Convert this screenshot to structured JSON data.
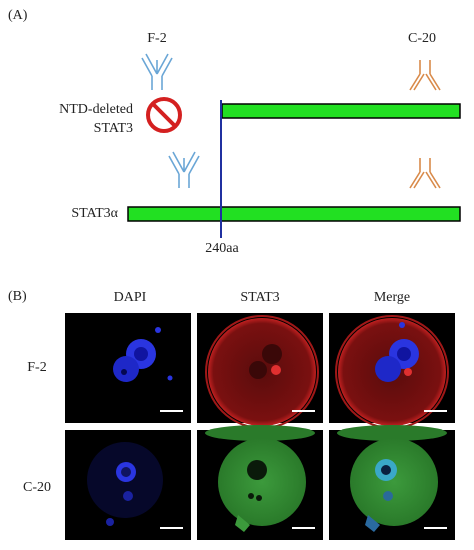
{
  "panel_a": {
    "label": "(A)",
    "antibodies": [
      "F-2",
      "C-20"
    ],
    "constructs": [
      {
        "name_lines": [
          "NTD-deleted",
          "STAT3"
        ]
      },
      {
        "name_lines": [
          "STAT3α"
        ]
      }
    ],
    "marker": "240aa"
  },
  "panel_b": {
    "label": "(B)",
    "columns": [
      "DAPI",
      "STAT3",
      "Merge"
    ],
    "rows": [
      "F-2",
      "C-20"
    ]
  }
}
